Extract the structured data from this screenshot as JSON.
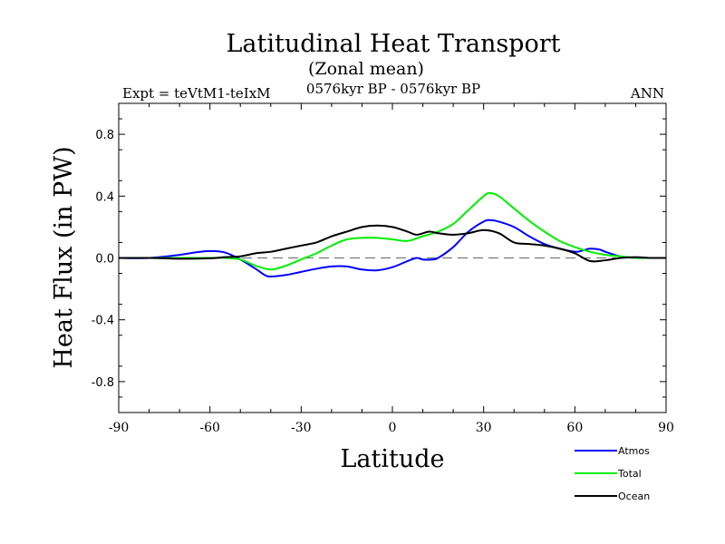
{
  "chart_data": {
    "type": "line",
    "title": "Latitudinal Heat Transport",
    "subtitle": "(Zonal mean)",
    "period": "0576kyr BP - 0576kyr BP",
    "left_label": "Expt = teVtM1-teIxM",
    "right_label": "ANN",
    "xlabel": "Latitude",
    "ylabel": "Heat Flux (in PW)",
    "xlim": [
      -90,
      90
    ],
    "ylim": [
      -1.0,
      1.0
    ],
    "xticks": [
      -90,
      -60,
      -30,
      0,
      30,
      60,
      90
    ],
    "xtick_labels": [
      "-90",
      "-60",
      "-30",
      "0",
      "30",
      "60",
      "90"
    ],
    "yticks": [
      -0.8,
      -0.4,
      0.0,
      0.4,
      0.8
    ],
    "ytick_labels": [
      "-0.8",
      "-0.4",
      "0.0",
      "0.4",
      "0.8"
    ],
    "zero_line": true,
    "series": [
      {
        "name": "Atmos",
        "color": "#0000ff",
        "x": [
          -90,
          -80,
          -70,
          -65,
          -60,
          -55,
          -50,
          -45,
          -42,
          -40,
          -35,
          -30,
          -25,
          -20,
          -15,
          -10,
          -5,
          0,
          5,
          8,
          10,
          13,
          15,
          20,
          25,
          30,
          32,
          35,
          40,
          45,
          50,
          55,
          60,
          62,
          65,
          68,
          70,
          75,
          80,
          85,
          90
        ],
        "y": [
          0.0,
          0.0,
          0.02,
          0.035,
          0.045,
          0.035,
          -0.01,
          -0.07,
          -0.11,
          -0.12,
          -0.11,
          -0.09,
          -0.07,
          -0.055,
          -0.055,
          -0.075,
          -0.08,
          -0.06,
          -0.02,
          0.0,
          -0.01,
          -0.01,
          0.0,
          0.07,
          0.17,
          0.235,
          0.245,
          0.235,
          0.2,
          0.14,
          0.09,
          0.06,
          0.04,
          0.045,
          0.06,
          0.055,
          0.04,
          0.01,
          0.0,
          0.0,
          0.0
        ]
      },
      {
        "name": "Total",
        "color": "#00ee00",
        "x": [
          -90,
          -80,
          -70,
          -60,
          -55,
          -50,
          -45,
          -40,
          -35,
          -30,
          -25,
          -20,
          -15,
          -10,
          -5,
          0,
          5,
          10,
          15,
          20,
          25,
          30,
          32,
          35,
          40,
          45,
          50,
          55,
          60,
          65,
          70,
          75,
          80,
          85,
          90
        ],
        "y": [
          0.0,
          0.0,
          0.0,
          0.0,
          0.0,
          -0.01,
          -0.05,
          -0.075,
          -0.05,
          -0.01,
          0.03,
          0.08,
          0.12,
          0.13,
          0.13,
          0.12,
          0.11,
          0.14,
          0.17,
          0.22,
          0.31,
          0.4,
          0.42,
          0.4,
          0.32,
          0.24,
          0.17,
          0.11,
          0.07,
          0.04,
          0.02,
          0.01,
          0.0,
          0.0,
          0.0
        ]
      },
      {
        "name": "Ocean",
        "color": "#000000",
        "x": [
          -90,
          -80,
          -70,
          -60,
          -55,
          -50,
          -45,
          -40,
          -35,
          -30,
          -25,
          -20,
          -15,
          -10,
          -5,
          0,
          5,
          8,
          12,
          15,
          20,
          25,
          30,
          35,
          40,
          45,
          50,
          55,
          60,
          65,
          70,
          75,
          80,
          85,
          90
        ],
        "y": [
          0.0,
          0.0,
          -0.005,
          -0.002,
          0.005,
          0.01,
          0.03,
          0.04,
          0.06,
          0.08,
          0.1,
          0.14,
          0.17,
          0.2,
          0.21,
          0.2,
          0.17,
          0.15,
          0.17,
          0.16,
          0.15,
          0.16,
          0.18,
          0.16,
          0.1,
          0.09,
          0.08,
          0.06,
          0.03,
          -0.02,
          -0.015,
          0.0,
          0.005,
          0.0,
          0.0
        ]
      }
    ]
  }
}
